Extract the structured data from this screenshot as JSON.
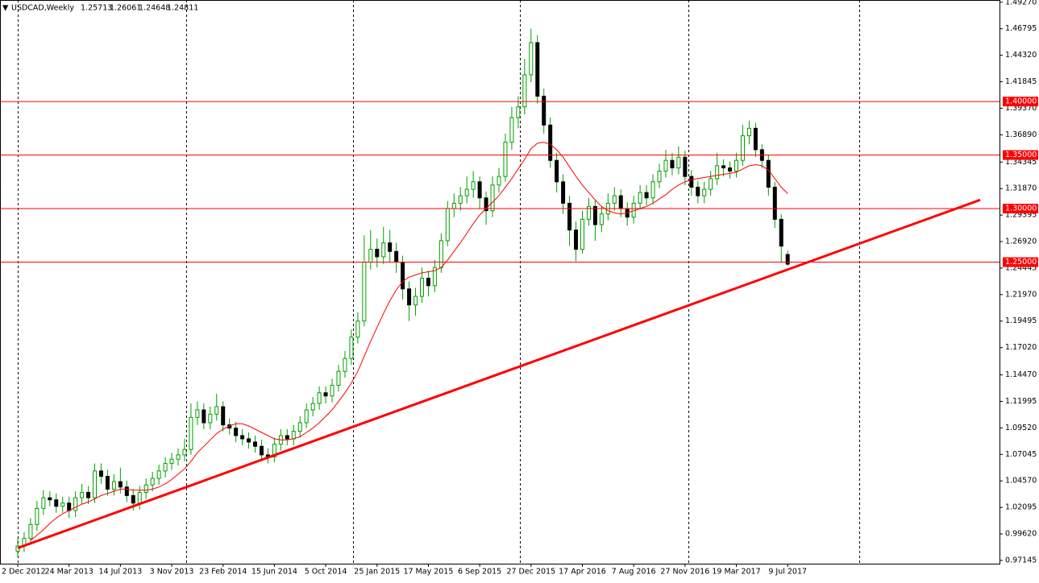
{
  "chart_data": {
    "type": "candlestick",
    "symbol": "USDCAD,Weekly",
    "up_color": "#00a000",
    "down_color": "#000000",
    "categories": [
      "2 Dec 2012",
      null,
      null,
      null,
      null,
      null,
      null,
      null,
      "24 Mar 2013",
      null,
      null,
      null,
      null,
      null,
      null,
      null,
      "14 Jul 2013",
      null,
      null,
      null,
      null,
      null,
      null,
      null,
      "3 Nov 2013",
      null,
      null,
      null,
      null,
      null,
      null,
      null,
      "23 Feb 2014",
      null,
      null,
      null,
      null,
      null,
      null,
      null,
      "15 Jun 2014",
      null,
      null,
      null,
      null,
      null,
      null,
      null,
      "5 Oct 2014",
      null,
      null,
      null,
      null,
      null,
      null,
      null,
      "25 Jan 2015",
      null,
      null,
      null,
      null,
      null,
      null,
      null,
      "17 May 2015",
      null,
      null,
      null,
      null,
      null,
      null,
      null,
      "6 Sep 2015",
      null,
      null,
      null,
      null,
      null,
      null,
      null,
      "27 Dec 2015",
      null,
      null,
      null,
      null,
      null,
      null,
      null,
      "17 Apr 2016",
      null,
      null,
      null,
      null,
      null,
      null,
      null,
      "7 Aug 2016",
      null,
      null,
      null,
      null,
      null,
      null,
      null,
      "27 Nov 2016",
      null,
      null,
      null,
      null,
      null,
      null,
      null,
      "19 Mar 2017",
      null,
      null,
      null,
      null,
      null,
      null,
      null,
      "9 Jul 2017"
    ],
    "open": [
      0.98,
      0.985,
      0.992,
      1.005,
      1.02,
      1.03,
      1.028,
      1.022,
      1.025,
      1.018,
      1.03,
      1.035,
      1.03,
      1.055,
      1.05,
      1.038,
      1.045,
      1.04,
      1.032,
      1.025,
      1.035,
      1.042,
      1.048,
      1.055,
      1.062,
      1.066,
      1.07,
      1.075,
      1.105,
      1.112,
      1.1,
      1.108,
      1.115,
      1.098,
      1.095,
      1.088,
      1.085,
      1.082,
      1.078,
      1.07,
      1.068,
      1.08,
      1.088,
      1.085,
      1.092,
      1.1,
      1.112,
      1.118,
      1.128,
      1.125,
      1.135,
      1.148,
      1.16,
      1.18,
      1.195,
      1.25,
      1.262,
      1.255,
      1.268,
      1.26,
      1.25,
      1.225,
      1.21,
      1.218,
      1.235,
      1.228,
      1.245,
      1.27,
      1.3,
      1.305,
      1.312,
      1.318,
      1.325,
      1.31,
      1.298,
      1.322,
      1.33,
      1.362,
      1.385,
      1.395,
      1.425,
      1.455,
      1.405,
      1.378,
      1.345,
      1.325,
      1.305,
      1.28,
      1.262,
      1.29,
      1.302,
      1.285,
      1.295,
      1.305,
      1.312,
      1.3,
      1.292,
      1.305,
      1.315,
      1.31,
      1.325,
      1.335,
      1.345,
      1.338,
      1.348,
      1.33,
      1.32,
      1.312,
      1.318,
      1.328,
      1.34,
      1.338,
      1.335,
      1.345,
      1.368,
      1.375,
      1.355,
      1.345,
      1.32,
      1.29,
      1.25713
    ],
    "high": [
      0.992,
      0.998,
      1.011,
      1.027,
      1.037,
      1.036,
      1.034,
      1.031,
      1.031,
      1.036,
      1.043,
      1.041,
      1.062,
      1.062,
      1.056,
      1.052,
      1.058,
      1.046,
      1.038,
      1.041,
      1.048,
      1.054,
      1.061,
      1.068,
      1.072,
      1.076,
      1.085,
      1.118,
      1.12,
      1.118,
      1.115,
      1.127,
      1.12,
      1.104,
      1.101,
      1.094,
      1.091,
      1.088,
      1.084,
      1.076,
      1.086,
      1.094,
      1.094,
      1.098,
      1.106,
      1.118,
      1.124,
      1.134,
      1.134,
      1.141,
      1.154,
      1.167,
      1.187,
      1.203,
      1.275,
      1.28,
      1.272,
      1.283,
      1.28,
      1.268,
      1.256,
      1.232,
      1.226,
      1.245,
      1.242,
      1.252,
      1.277,
      1.307,
      1.314,
      1.32,
      1.33,
      1.335,
      1.33,
      1.316,
      1.33,
      1.338,
      1.37,
      1.395,
      1.405,
      1.44,
      1.468,
      1.462,
      1.412,
      1.385,
      1.352,
      1.332,
      1.312,
      1.288,
      1.298,
      1.31,
      1.308,
      1.302,
      1.314,
      1.32,
      1.318,
      1.306,
      1.312,
      1.322,
      1.322,
      1.332,
      1.342,
      1.355,
      1.352,
      1.358,
      1.354,
      1.336,
      1.326,
      1.325,
      1.335,
      1.352,
      1.346,
      1.344,
      1.352,
      1.378,
      1.382,
      1.38,
      1.36,
      1.35,
      1.325,
      1.295,
      1.26061
    ],
    "low": [
      0.975,
      0.979,
      0.986,
      0.999,
      1.014,
      1.022,
      1.016,
      1.016,
      1.011,
      1.012,
      1.024,
      1.024,
      1.025,
      1.043,
      1.032,
      1.032,
      1.034,
      1.026,
      1.018,
      1.019,
      1.029,
      1.036,
      1.042,
      1.049,
      1.056,
      1.06,
      1.064,
      1.07,
      1.098,
      1.094,
      1.094,
      1.102,
      1.092,
      1.089,
      1.082,
      1.079,
      1.076,
      1.072,
      1.064,
      1.062,
      1.063,
      1.074,
      1.079,
      1.079,
      1.086,
      1.095,
      1.106,
      1.112,
      1.118,
      1.119,
      1.129,
      1.142,
      1.154,
      1.174,
      1.19,
      1.243,
      1.245,
      1.248,
      1.25,
      1.24,
      1.215,
      1.195,
      1.2,
      1.212,
      1.218,
      1.222,
      1.24,
      1.265,
      1.292,
      1.298,
      1.305,
      1.31,
      1.3,
      1.285,
      1.292,
      1.315,
      1.325,
      1.355,
      1.375,
      1.388,
      1.418,
      1.398,
      1.37,
      1.338,
      1.315,
      1.295,
      1.265,
      1.251,
      1.258,
      1.284,
      1.27,
      1.278,
      1.289,
      1.298,
      1.292,
      1.284,
      1.286,
      1.299,
      1.303,
      1.304,
      1.319,
      1.329,
      1.331,
      1.332,
      1.322,
      1.312,
      1.305,
      1.305,
      1.312,
      1.322,
      1.33,
      1.328,
      1.329,
      1.34,
      1.36,
      1.348,
      1.338,
      1.312,
      1.282,
      1.25,
      1.24648
    ],
    "close": [
      0.985,
      0.992,
      1.005,
      1.02,
      1.03,
      1.028,
      1.022,
      1.025,
      1.018,
      1.03,
      1.035,
      1.03,
      1.055,
      1.05,
      1.038,
      1.045,
      1.04,
      1.032,
      1.025,
      1.035,
      1.042,
      1.048,
      1.055,
      1.062,
      1.066,
      1.07,
      1.075,
      1.105,
      1.112,
      1.1,
      1.108,
      1.115,
      1.098,
      1.095,
      1.088,
      1.085,
      1.082,
      1.078,
      1.07,
      1.068,
      1.08,
      1.088,
      1.085,
      1.092,
      1.1,
      1.112,
      1.118,
      1.128,
      1.125,
      1.135,
      1.148,
      1.16,
      1.18,
      1.195,
      1.25,
      1.262,
      1.255,
      1.268,
      1.26,
      1.25,
      1.225,
      1.21,
      1.218,
      1.235,
      1.228,
      1.245,
      1.27,
      1.3,
      1.305,
      1.312,
      1.318,
      1.325,
      1.31,
      1.298,
      1.322,
      1.33,
      1.362,
      1.385,
      1.395,
      1.425,
      1.455,
      1.405,
      1.378,
      1.345,
      1.325,
      1.305,
      1.28,
      1.262,
      1.29,
      1.302,
      1.285,
      1.295,
      1.305,
      1.312,
      1.3,
      1.292,
      1.305,
      1.315,
      1.31,
      1.325,
      1.335,
      1.345,
      1.338,
      1.348,
      1.33,
      1.32,
      1.312,
      1.318,
      1.328,
      1.34,
      1.338,
      1.335,
      1.345,
      1.368,
      1.375,
      1.355,
      1.345,
      1.32,
      1.29,
      1.265,
      1.24811
    ],
    "moving_average": {
      "color": "#ff0000",
      "values": [
        null,
        null,
        0.99,
        0.995,
        1.0,
        1.006,
        1.011,
        1.015,
        1.018,
        1.021,
        1.024,
        1.026,
        1.029,
        1.032,
        1.034,
        1.036,
        1.038,
        1.038,
        1.037,
        1.037,
        1.037,
        1.038,
        1.04,
        1.043,
        1.047,
        1.052,
        1.057,
        1.064,
        1.072,
        1.078,
        1.084,
        1.09,
        1.094,
        1.097,
        1.099,
        1.099,
        1.097,
        1.094,
        1.091,
        1.088,
        1.085,
        1.084,
        1.084,
        1.085,
        1.087,
        1.091,
        1.095,
        1.1,
        1.106,
        1.112,
        1.12,
        1.128,
        1.137,
        1.148,
        1.162,
        1.176,
        1.189,
        1.202,
        1.214,
        1.224,
        1.232,
        1.236,
        1.238,
        1.24,
        1.241,
        1.242,
        1.245,
        1.252,
        1.26,
        1.268,
        1.277,
        1.286,
        1.294,
        1.3,
        1.306,
        1.312,
        1.32,
        1.328,
        1.337,
        1.346,
        1.356,
        1.361,
        1.362,
        1.36,
        1.355,
        1.348,
        1.339,
        1.33,
        1.322,
        1.315,
        1.308,
        1.302,
        1.298,
        1.296,
        1.295,
        1.296,
        1.298,
        1.3,
        1.302,
        1.305,
        1.309,
        1.313,
        1.318,
        1.322,
        1.325,
        1.327,
        1.328,
        1.329,
        1.33,
        1.331,
        1.332,
        1.333,
        1.334,
        1.337,
        1.34,
        1.341,
        1.34,
        1.336,
        1.328,
        1.32,
        1.314
      ]
    },
    "trendline": {
      "color": "#ff0000",
      "x": [
        0,
        150
      ],
      "values": [
        0.983,
        1.3081
      ]
    },
    "levels": [
      {
        "value": 1.4,
        "label": "1.40000"
      },
      {
        "value": 1.35,
        "label": "1.35000"
      },
      {
        "value": 1.3,
        "label": "1.30000"
      },
      {
        "value": 1.25,
        "label": "1.25000"
      }
    ],
    "level_color": "#ff0000",
    "ylim": [
      0.9684,
      1.4948
    ],
    "yticks": [
      0.97145,
      {
        "value": 0.9962,
        "label": "0.99620"
      },
      1.02095,
      {
        "value": 1.0457,
        "label": "1.04570"
      },
      1.07045,
      {
        "value": 1.0952,
        "label": "1.09520"
      },
      1.11995,
      {
        "value": 1.1447,
        "label": "1.14470"
      },
      {
        "value": 1.1702,
        "label": "1.17020"
      },
      1.19495,
      {
        "value": 1.2197,
        "label": "1.21970"
      },
      1.24445,
      {
        "value": 1.2692,
        "label": "1.26920"
      },
      1.29395,
      {
        "value": 1.3187,
        "label": "1.31870"
      },
      1.34345,
      {
        "value": 1.3689,
        "label": "1.36890"
      },
      {
        "value": 1.3937,
        "label": "1.39370"
      },
      1.41845,
      {
        "value": 1.4432,
        "label": "1.44320"
      },
      1.46795,
      {
        "value": 1.4927,
        "label": "1.49270"
      }
    ]
  }
}
